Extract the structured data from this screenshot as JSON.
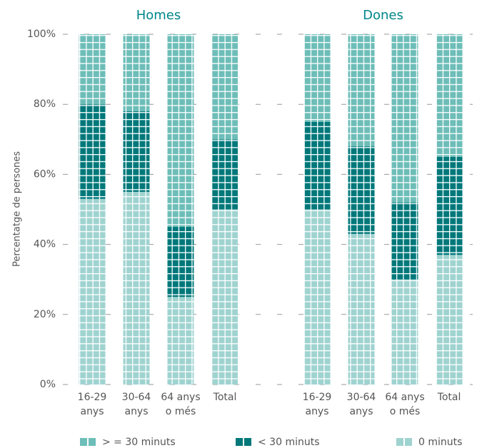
{
  "chart_data": [
    {
      "type": "stacked-bar",
      "title": "Homes",
      "y_label": "Percentatge de persones",
      "categories": [
        [
          "16-29",
          "anys"
        ],
        [
          "30-64",
          "anys"
        ],
        [
          "64 anys",
          "o més"
        ],
        [
          "Total"
        ]
      ],
      "series": [
        {
          "name": "0 minuts",
          "color": "#9fd3d0",
          "values": [
            53,
            55,
            25,
            50
          ]
        },
        {
          "name": "< 30 minuts",
          "color": "#00787a",
          "values": [
            27,
            23,
            20,
            20
          ]
        },
        {
          "name": "> = 30 minuts",
          "color": "#6dbdb8",
          "values": [
            20,
            22,
            55,
            30
          ]
        }
      ],
      "ylim": [
        0,
        100
      ],
      "yticks": [
        {
          "value": 0,
          "label": "0%"
        },
        {
          "value": 20,
          "label": "20%"
        },
        {
          "value": 40,
          "label": "40%"
        },
        {
          "value": 60,
          "label": "60%"
        },
        {
          "value": 80,
          "label": "80%"
        },
        {
          "value": 100,
          "label": "100%"
        }
      ],
      "grid": true
    },
    {
      "type": "stacked-bar",
      "title": "Dones",
      "categories": [
        [
          "16-29",
          "anys"
        ],
        [
          "30-64",
          "anys"
        ],
        [
          "64 anys",
          "o més"
        ],
        [
          "Total"
        ]
      ],
      "series": [
        {
          "name": "0 minuts",
          "color": "#9fd3d0",
          "values": [
            50,
            43,
            30,
            37
          ]
        },
        {
          "name": "< 30 minuts",
          "color": "#00787a",
          "values": [
            25,
            25,
            22,
            28
          ]
        },
        {
          "name": "> = 30 minuts",
          "color": "#6dbdb8",
          "values": [
            25,
            32,
            48,
            35
          ]
        }
      ],
      "ylim": [
        0,
        100
      ],
      "yticks": [
        {
          "value": 0,
          "label": "0%"
        },
        {
          "value": 20,
          "label": "20%"
        },
        {
          "value": 40,
          "label": "40%"
        },
        {
          "value": 60,
          "label": "60%"
        },
        {
          "value": 80,
          "label": "80%"
        },
        {
          "value": 100,
          "label": "100%"
        }
      ],
      "grid": true
    }
  ]
}
